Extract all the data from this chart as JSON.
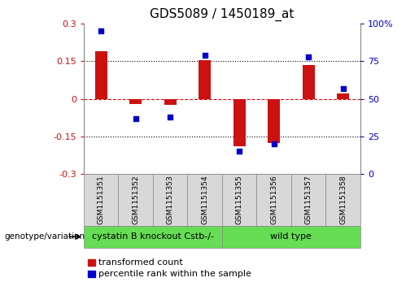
{
  "title": "GDS5089 / 1450189_at",
  "samples": [
    "GSM1151351",
    "GSM1151352",
    "GSM1151353",
    "GSM1151354",
    "GSM1151355",
    "GSM1151356",
    "GSM1151357",
    "GSM1151358"
  ],
  "bar_values": [
    0.19,
    -0.02,
    -0.025,
    0.155,
    -0.19,
    -0.175,
    0.135,
    0.02
  ],
  "scatter_values": [
    95,
    37,
    38,
    79,
    15,
    20,
    78,
    57
  ],
  "bar_color": "#cc1111",
  "scatter_color": "#0000cc",
  "ylim_left": [
    -0.3,
    0.3
  ],
  "ylim_right": [
    0,
    100
  ],
  "yticks_left": [
    -0.3,
    -0.15,
    0,
    0.15,
    0.3
  ],
  "yticks_right": [
    0,
    25,
    50,
    75,
    100
  ],
  "ytick_labels_left": [
    "-0.3",
    "-0.15",
    "0",
    "0.15",
    "0.3"
  ],
  "ytick_labels_right": [
    "0",
    "25",
    "50",
    "75",
    "100%"
  ],
  "hlines": [
    0.15,
    -0.15
  ],
  "hline_zero_color": "#cc1111",
  "hline_dotted_color": "#000000",
  "group1_label": "cystatin B knockout Cstb-/-",
  "group2_label": "wild type",
  "group1_indices": [
    0,
    1,
    2,
    3
  ],
  "group2_indices": [
    4,
    5,
    6,
    7
  ],
  "group_color": "#66dd55",
  "row_label": "genotype/variation",
  "legend_bar_label": "transformed count",
  "legend_scatter_label": "percentile rank within the sample",
  "bg_color": "#d8d8d8",
  "bar_width": 0.35,
  "title_fontsize": 11,
  "tick_fontsize": 8,
  "sample_fontsize": 6.5,
  "group_fontsize": 8,
  "legend_fontsize": 8
}
